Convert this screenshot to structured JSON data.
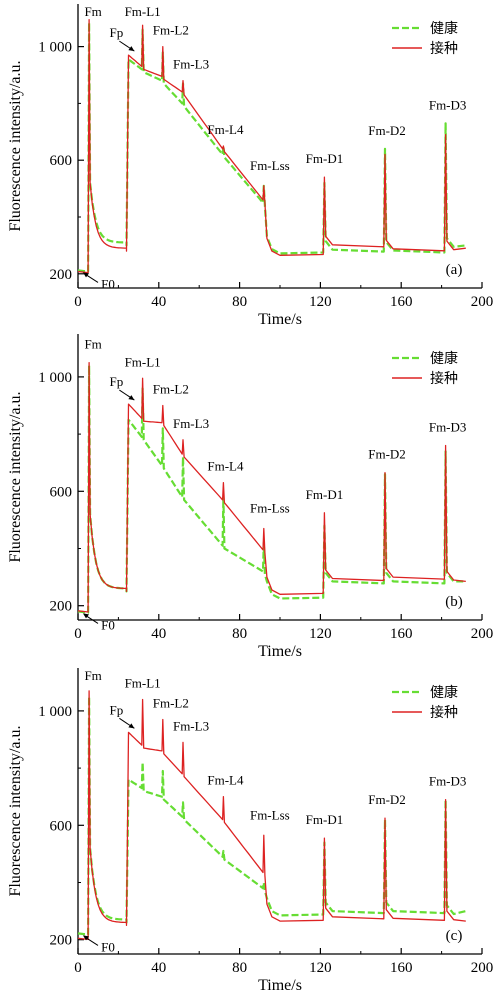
{
  "figure": {
    "legend_labels": [
      "健康",
      "接种"
    ],
    "colors": {
      "healthy": "#66dd33",
      "inoculated": "#dd2222"
    }
  },
  "chart_data": [
    {
      "type": "line",
      "panel": "(a)",
      "xlabel": "Time/s",
      "ylabel": "Fluorescence intensity/a.u.",
      "xlim": [
        0,
        200
      ],
      "ylim": [
        150,
        1150
      ],
      "xticks": [
        0,
        40,
        80,
        120,
        160,
        200
      ],
      "yticks": [
        200,
        600,
        1000
      ],
      "ytick_labels": [
        "200",
        "600",
        "1 000"
      ],
      "legend_position": "top-right",
      "annotations": [
        "Fm",
        "Fp",
        "Fm-L1",
        "Fm-L2",
        "Fm-L3",
        "Fm-L4",
        "Fm-Lss",
        "Fm-D1",
        "Fm-D2",
        "Fm-D3",
        "F0"
      ],
      "peak_times": [
        5.5,
        32,
        42,
        52,
        72,
        92,
        122,
        152,
        182
      ],
      "series": [
        {
          "name": "健康",
          "style": "dashed",
          "f0": 212,
          "fm": 1085,
          "fp": 955,
          "fp_t": 25,
          "light_tops": [
            1060,
            980,
            870,
            650,
            510
          ],
          "light_base": [
            920,
            880,
            800,
            620,
            450
          ],
          "light_times": [
            32,
            42,
            52,
            72,
            92
          ],
          "dark_base": [
            272,
            275,
            272,
            285
          ],
          "dark_peaks": [
            520,
            640,
            730
          ],
          "dark_times": [
            122,
            152,
            182
          ],
          "pre_fp": 310,
          "end": 300
        },
        {
          "name": "接种",
          "style": "solid",
          "f0": 208,
          "fm": 1095,
          "fp": 970,
          "fp_t": 25,
          "light_tops": [
            1075,
            1000,
            880,
            650,
            510
          ],
          "light_base": [
            930,
            895,
            840,
            640,
            460
          ],
          "light_times": [
            32,
            42,
            52,
            72,
            92
          ],
          "dark_base": [
            265,
            292,
            278,
            275
          ],
          "dark_peaks": [
            540,
            620,
            690
          ],
          "dark_times": [
            122,
            152,
            182
          ],
          "pre_fp": 290,
          "end": 290
        }
      ]
    },
    {
      "type": "line",
      "panel": "(b)",
      "xlabel": "Time/s",
      "ylabel": "Fluorescence intensity/a.u.",
      "xlim": [
        0,
        200
      ],
      "ylim": [
        150,
        1150
      ],
      "xticks": [
        0,
        40,
        80,
        120,
        160,
        200
      ],
      "yticks": [
        200,
        600,
        1000
      ],
      "ytick_labels": [
        "200",
        "600",
        "1 000"
      ],
      "legend_position": "top-right",
      "annotations": [
        "Fm",
        "Fp",
        "Fm-L1",
        "Fm-L2",
        "Fm-L3",
        "Fm-L4",
        "Fm-Lss",
        "Fm-D1",
        "Fm-D2",
        "Fm-D3",
        "F0"
      ],
      "series": [
        {
          "name": "健康",
          "style": "dashed",
          "f0": 180,
          "fm": 1040,
          "fp": 850,
          "fp_t": 25,
          "light_tops": [
            960,
            820,
            720,
            580,
            420
          ],
          "light_base": [
            790,
            690,
            580,
            410,
            320
          ],
          "light_times": [
            32,
            42,
            52,
            72,
            92
          ],
          "dark_base": [
            225,
            275,
            275,
            275
          ],
          "dark_peaks": [
            480,
            660,
            740
          ],
          "dark_times": [
            122,
            152,
            182
          ],
          "pre_fp": 260,
          "end": 285
        },
        {
          "name": "接种",
          "style": "solid",
          "f0": 182,
          "fm": 1050,
          "fp": 905,
          "fp_t": 25,
          "light_tops": [
            995,
            900,
            780,
            630,
            470
          ],
          "light_base": [
            855,
            840,
            730,
            570,
            395
          ],
          "light_times": [
            32,
            42,
            52,
            72,
            92
          ],
          "dark_base": [
            240,
            285,
            290,
            280
          ],
          "dark_peaks": [
            525,
            665,
            760
          ],
          "dark_times": [
            122,
            152,
            182
          ],
          "pre_fp": 260,
          "end": 285
        }
      ]
    },
    {
      "type": "line",
      "panel": "(c)",
      "xlabel": "Time/s",
      "ylabel": "Fluorescence intensity/a.u.",
      "xlim": [
        0,
        200
      ],
      "ylim": [
        150,
        1150
      ],
      "xticks": [
        0,
        40,
        80,
        120,
        160,
        200
      ],
      "yticks": [
        200,
        600,
        1000
      ],
      "ytick_labels": [
        "200",
        "600",
        "1 000"
      ],
      "legend_position": "top-right",
      "annotations": [
        "Fm",
        "Fp",
        "Fm-L1",
        "Fm-L2",
        "Fm-L3",
        "Fm-L4",
        "Fm-Lss",
        "Fm-D1",
        "Fm-D2",
        "Fm-D3",
        "F0"
      ],
      "series": [
        {
          "name": "健康",
          "style": "dashed",
          "f0": 222,
          "fm": 1050,
          "fp": 760,
          "fp_t": 25,
          "light_tops": [
            820,
            790,
            680,
            510,
            400
          ],
          "light_base": [
            730,
            700,
            630,
            490,
            380
          ],
          "light_times": [
            32,
            42,
            52,
            72,
            92
          ],
          "dark_base": [
            285,
            290,
            290,
            280
          ],
          "dark_peaks": [
            540,
            620,
            690
          ],
          "dark_times": [
            122,
            152,
            182
          ],
          "pre_fp": 270,
          "end": 300
        },
        {
          "name": "接种",
          "style": "solid",
          "f0": 205,
          "fm": 1070,
          "fp": 925,
          "fp_t": 25,
          "light_tops": [
            1040,
            970,
            890,
            700,
            565
          ],
          "light_base": [
            880,
            860,
            780,
            620,
            435
          ],
          "light_times": [
            32,
            42,
            52,
            72,
            92
          ],
          "dark_base": [
            265,
            270,
            265,
            260
          ],
          "dark_peaks": [
            555,
            625,
            690
          ],
          "dark_times": [
            122,
            152,
            182
          ],
          "pre_fp": 260,
          "end": 265
        }
      ]
    }
  ]
}
